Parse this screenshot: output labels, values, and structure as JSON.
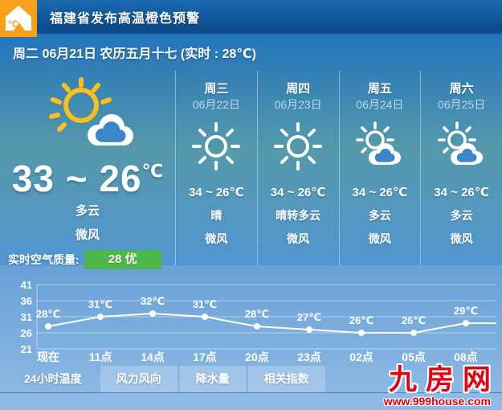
{
  "alert": {
    "title": "福建省发布高温橙色预警",
    "icon": "high-temp-warning-icon",
    "icon_label": "°C",
    "icon_color": "#f9a11b"
  },
  "date_bar": {
    "text": "周二 06月21日 农历五月十七 (实时 : 28℃)"
  },
  "current": {
    "range": "33 ~ 26",
    "unit": "℃",
    "condition": "多云",
    "wind": "微风",
    "icon": "sun-cloud",
    "air_quality_label": "实时空气质量:",
    "air_quality_value": "28 优",
    "air_quality_color": "#4cb848"
  },
  "forecast": {
    "days": [
      {
        "day": "周三",
        "date": "06月22日",
        "temp": "34 ~ 26℃",
        "condition": "晴",
        "wind": "微风",
        "icon": "sunny"
      },
      {
        "day": "周四",
        "date": "06月23日",
        "temp": "34 ~ 26℃",
        "condition": "晴转多云",
        "wind": "微风",
        "icon": "sunny"
      },
      {
        "day": "周五",
        "date": "06月24日",
        "temp": "34 ~ 26℃",
        "condition": "多云",
        "wind": "微风",
        "icon": "partly-cloudy"
      },
      {
        "day": "周六",
        "date": "06月25日",
        "temp": "34 ~ 26℃",
        "condition": "多云",
        "wind": "微风",
        "icon": "partly-cloudy"
      }
    ]
  },
  "chart_data": {
    "type": "line",
    "title": "24小时温度",
    "x": [
      "现在",
      "11点",
      "14点",
      "17点",
      "20点",
      "23点",
      "02点",
      "05点",
      "08点"
    ],
    "values": [
      28,
      31,
      32,
      31,
      28,
      27,
      26,
      26,
      29
    ],
    "labels": [
      "28℃",
      "31℃",
      "32℃",
      "31℃",
      "28℃",
      "27℃",
      "26℃",
      "26℃",
      "29℃"
    ],
    "yticks": [
      41,
      36,
      31,
      26,
      21
    ],
    "ylim": [
      21,
      41
    ],
    "line_color": "#ffffff",
    "grid": true,
    "legend": false
  },
  "tabs": {
    "items": [
      {
        "label": "24小时温度",
        "active": true
      },
      {
        "label": "风力风向",
        "active": false
      },
      {
        "label": "降水量",
        "active": false
      },
      {
        "label": "相关指数",
        "active": false
      }
    ]
  },
  "branding": {
    "logo": "九房网",
    "url": "www.999house.com",
    "color": "#e60012"
  }
}
